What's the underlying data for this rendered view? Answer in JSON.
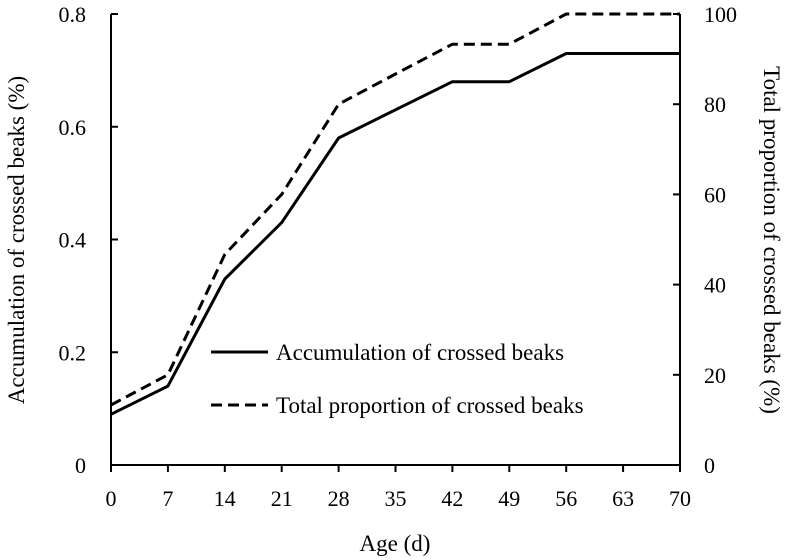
{
  "chart_data": {
    "type": "line",
    "xlabel": "Age (d)",
    "ylabel_left": "Accumulation of crossed beaks (%)",
    "ylabel_right": "Total proportion of crossed beaks (%)",
    "x": [
      0,
      7,
      14,
      21,
      28,
      35,
      42,
      49,
      56,
      63,
      70
    ],
    "x_ticks": [
      "0",
      "7",
      "14",
      "21",
      "28",
      "35",
      "42",
      "49",
      "56",
      "63",
      "70"
    ],
    "y_left": {
      "ylim": [
        0,
        0.8
      ],
      "ticks": [
        "0",
        "0.2",
        "0.4",
        "0.6",
        "0.8"
      ]
    },
    "y_right": {
      "ylim": [
        0,
        100
      ],
      "ticks": [
        "0",
        "20",
        "40",
        "60",
        "80",
        "100"
      ]
    },
    "series": [
      {
        "name": "Accumulation of crossed beaks",
        "axis": "left",
        "style": "solid",
        "color": "#000000",
        "values": [
          0.09,
          0.14,
          0.33,
          0.43,
          0.58,
          0.63,
          0.68,
          0.68,
          0.73,
          0.73,
          0.73
        ]
      },
      {
        "name": "Total proportion of crossed beaks",
        "axis": "right",
        "style": "dashed",
        "color": "#000000",
        "values": [
          13.3,
          20,
          46.7,
          60,
          80,
          86.7,
          93.3,
          93.3,
          100,
          100,
          100
        ]
      }
    ],
    "legend": "center-right",
    "grid": false
  }
}
